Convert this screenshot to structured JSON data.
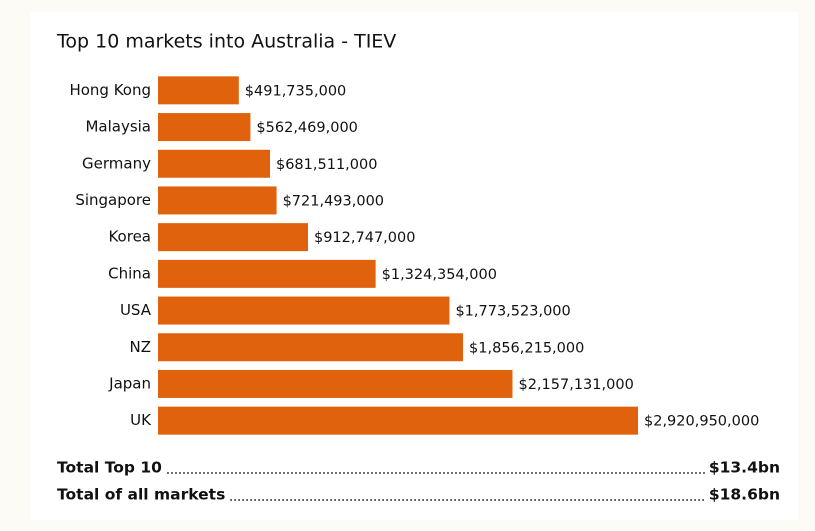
{
  "chart_data": {
    "type": "bar",
    "orientation": "horizontal",
    "title": "Top 10 markets into Australia - TIEV",
    "categories": [
      "Hong Kong",
      "Malaysia",
      "Germany",
      "Singapore",
      "Korea",
      "China",
      "USA",
      "NZ",
      "Japan",
      "UK"
    ],
    "values": [
      491735000,
      562469000,
      681511000,
      721493000,
      912747000,
      1324354000,
      1773523000,
      1856215000,
      2157131000,
      2920950000
    ],
    "value_labels": [
      "$491,735,000",
      "$562,469,000",
      "$681,511,000",
      "$721,493,000",
      "$912,747,000",
      "$1,324,354,000",
      "$1,773,523,000",
      "$1,856,215,000",
      "$2,157,131,000",
      "$2,920,950,000"
    ],
    "color": "#e0620c",
    "xlim": [
      0,
      3000000000
    ],
    "totals": [
      {
        "label": "Total Top 10",
        "value": "$13.4bn"
      },
      {
        "label": "Total of all markets",
        "value": "$18.6bn"
      }
    ]
  }
}
